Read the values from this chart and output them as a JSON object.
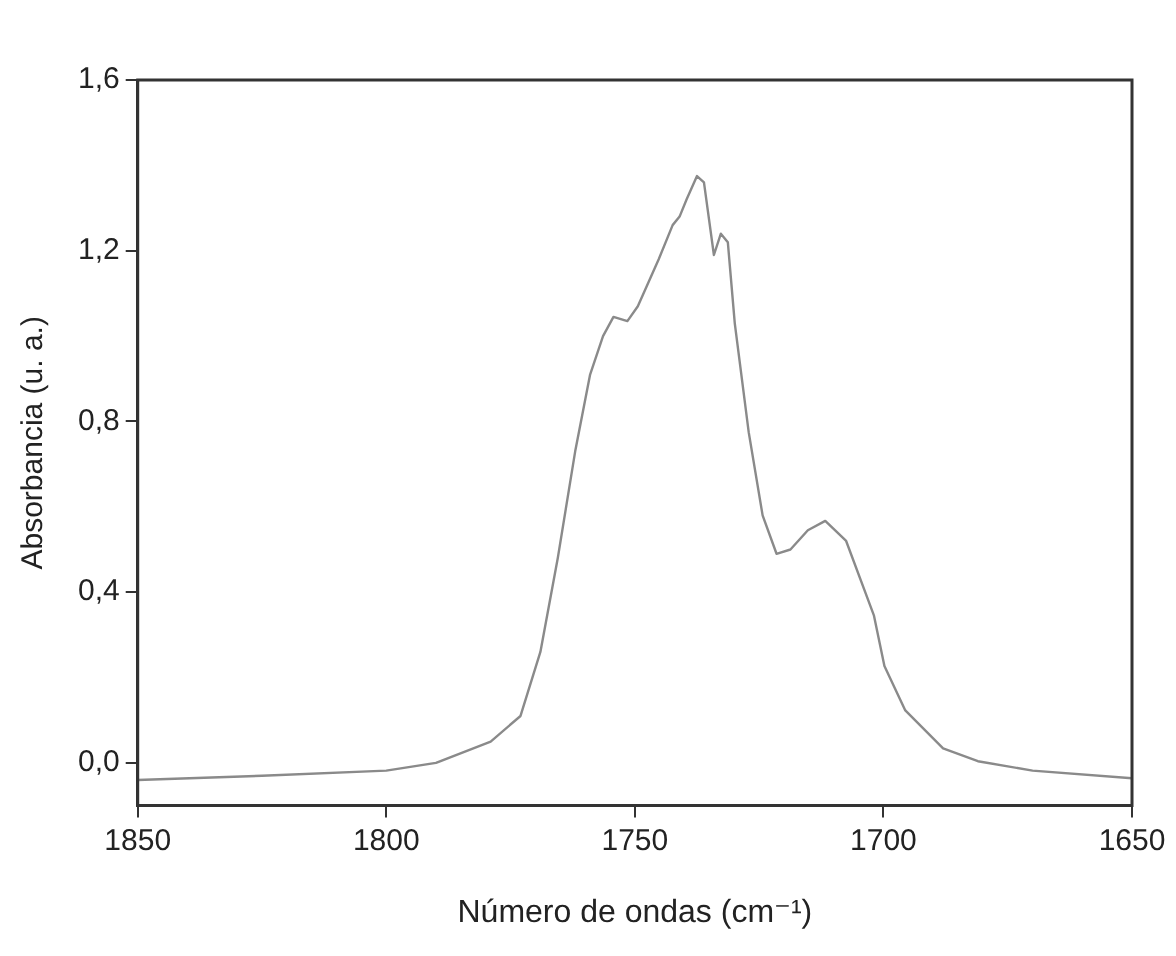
{
  "chart_data": {
    "type": "line",
    "xlabel": "Número de ondas (cm⁻¹)",
    "ylabel": "Absorbancia (u. a.)",
    "xlim": [
      1850,
      1650
    ],
    "xticks": [
      1850,
      1800,
      1750,
      1700,
      1650
    ],
    "ylim": [
      -0.1,
      1.6
    ],
    "yticks": [
      {
        "value": 0,
        "label": "0,0"
      },
      {
        "value": 0.4,
        "label": "0,4"
      },
      {
        "value": 0.8,
        "label": "0,8"
      },
      {
        "value": 1.2,
        "label": "1,2"
      },
      {
        "value": 1.6,
        "label": "1,6"
      }
    ],
    "grid": false,
    "legend": false,
    "marker": "none",
    "line_style": "solid",
    "series": [
      {
        "color": "#8a8a8a",
        "x": [
          1850,
          1825,
          1800,
          1790,
          1779,
          1773,
          1769,
          1765.5,
          1762,
          1759,
          1756.4,
          1754.3,
          1751.5,
          1749.4,
          1745.2,
          1742.4,
          1741,
          1739.6,
          1737.5,
          1736.1,
          1734.1,
          1732.7,
          1731.3,
          1729.9,
          1727.1,
          1724.3,
          1721.5,
          1718.7,
          1715.2,
          1711.7,
          1707.5,
          1701.9,
          1699.8,
          1695.6,
          1688,
          1681,
          1670,
          1650
        ],
        "values": [
          -0.04,
          -0.03,
          -0.018,
          0.0,
          0.05,
          0.11,
          0.26,
          0.48,
          0.73,
          0.91,
          1.0,
          1.045,
          1.035,
          1.07,
          1.18,
          1.26,
          1.28,
          1.32,
          1.375,
          1.36,
          1.19,
          1.24,
          1.22,
          1.03,
          0.775,
          0.58,
          0.49,
          0.5,
          0.545,
          0.567,
          0.52,
          0.345,
          0.227,
          0.123,
          0.034,
          0.004,
          -0.018,
          -0.036
        ]
      }
    ]
  }
}
